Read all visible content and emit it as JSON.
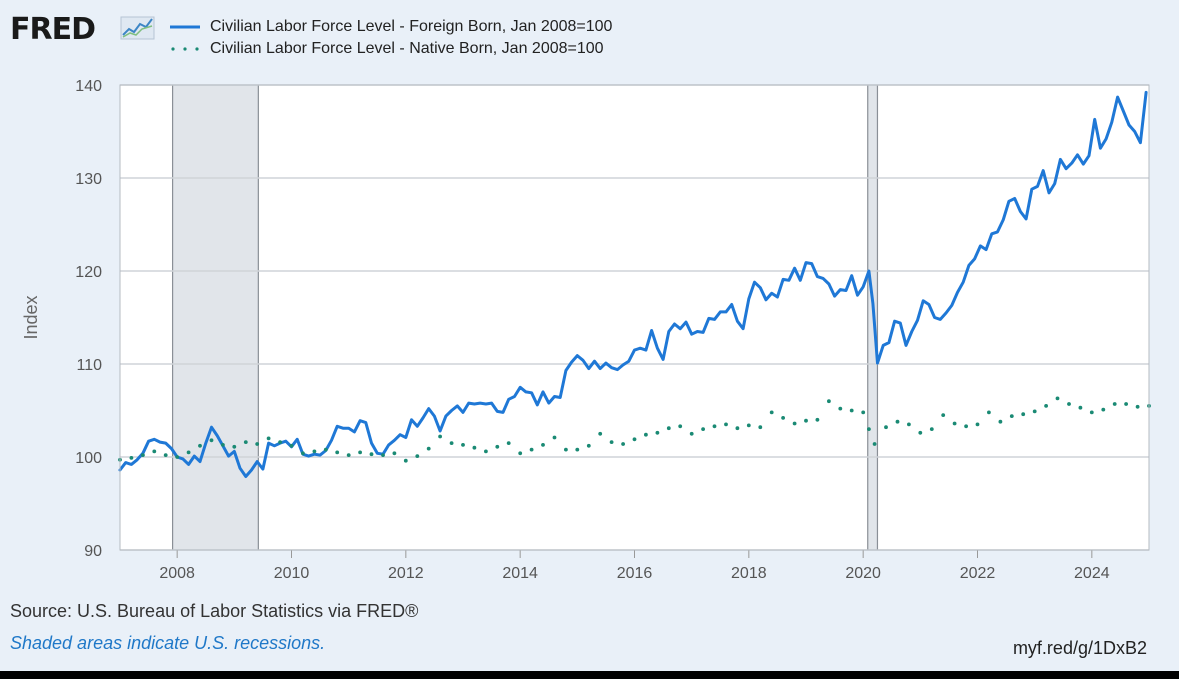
{
  "header": {
    "logo_text": "FRED",
    "legend": [
      {
        "label": "Civilian Labor Force Level - Foreign Born, Jan 2008=100",
        "color": "#1f78d6",
        "style": "solid"
      },
      {
        "label": "Civilian Labor Force Level - Native Born, Jan 2008=100",
        "color": "#1a8a74",
        "style": "dotted"
      }
    ]
  },
  "footer": {
    "source": "Source: U.S. Bureau of Labor Statistics via FRED®",
    "recession_note": "Shaded areas indicate U.S. recessions.",
    "link": "myf.red/g/1DxB2"
  },
  "chart_data": {
    "type": "line",
    "title": "",
    "xlabel": "",
    "ylabel": "Index",
    "xlim": [
      2007.0,
      2025.0
    ],
    "ylim": [
      90,
      140
    ],
    "y_ticks": [
      90,
      100,
      110,
      120,
      130,
      140
    ],
    "x_ticks": [
      2008,
      2010,
      2012,
      2014,
      2016,
      2018,
      2020,
      2022,
      2024
    ],
    "grid": true,
    "recessions": [
      [
        2007.92,
        2009.42
      ],
      [
        2020.08,
        2020.25
      ]
    ],
    "series": [
      {
        "name": "Civilian Labor Force Level - Foreign Born, Jan 2008=100",
        "color": "#1f78d6",
        "style": "solid",
        "points": [
          [
            2007.0,
            98.6
          ],
          [
            2007.1,
            99.4
          ],
          [
            2007.2,
            99.2
          ],
          [
            2007.3,
            99.7
          ],
          [
            2007.4,
            100.4
          ],
          [
            2007.5,
            101.7
          ],
          [
            2007.6,
            101.9
          ],
          [
            2007.7,
            101.6
          ],
          [
            2007.8,
            101.5
          ],
          [
            2007.9,
            100.9
          ],
          [
            2008.0,
            100.0
          ],
          [
            2008.1,
            99.8
          ],
          [
            2008.2,
            99.2
          ],
          [
            2008.3,
            100.1
          ],
          [
            2008.4,
            99.5
          ],
          [
            2008.5,
            101.5
          ],
          [
            2008.6,
            103.2
          ],
          [
            2008.7,
            102.3
          ],
          [
            2008.8,
            101.2
          ],
          [
            2008.9,
            100.1
          ],
          [
            2009.0,
            100.6
          ],
          [
            2009.1,
            98.8
          ],
          [
            2009.2,
            97.9
          ],
          [
            2009.3,
            98.6
          ],
          [
            2009.4,
            99.5
          ],
          [
            2009.5,
            98.7
          ],
          [
            2009.6,
            101.5
          ],
          [
            2009.7,
            101.2
          ],
          [
            2009.8,
            101.5
          ],
          [
            2009.9,
            101.7
          ],
          [
            2010.0,
            101.1
          ],
          [
            2010.1,
            101.9
          ],
          [
            2010.2,
            100.3
          ],
          [
            2010.3,
            100.1
          ],
          [
            2010.4,
            100.3
          ],
          [
            2010.5,
            100.2
          ],
          [
            2010.6,
            100.7
          ],
          [
            2010.7,
            101.8
          ],
          [
            2010.8,
            103.3
          ],
          [
            2010.9,
            103.1
          ],
          [
            2011.0,
            103.1
          ],
          [
            2011.1,
            102.7
          ],
          [
            2011.2,
            103.9
          ],
          [
            2011.3,
            103.7
          ],
          [
            2011.4,
            101.5
          ],
          [
            2011.5,
            100.4
          ],
          [
            2011.6,
            100.3
          ],
          [
            2011.7,
            101.3
          ],
          [
            2011.8,
            101.8
          ],
          [
            2011.9,
            102.4
          ],
          [
            2012.0,
            102.1
          ],
          [
            2012.1,
            104.0
          ],
          [
            2012.2,
            103.3
          ],
          [
            2012.3,
            104.2
          ],
          [
            2012.4,
            105.2
          ],
          [
            2012.5,
            104.4
          ],
          [
            2012.6,
            102.8
          ],
          [
            2012.7,
            104.4
          ],
          [
            2012.8,
            105.0
          ],
          [
            2012.9,
            105.5
          ],
          [
            2013.0,
            104.8
          ],
          [
            2013.1,
            105.8
          ],
          [
            2013.2,
            105.7
          ],
          [
            2013.3,
            105.8
          ],
          [
            2013.4,
            105.7
          ],
          [
            2013.5,
            105.8
          ],
          [
            2013.6,
            104.9
          ],
          [
            2013.7,
            104.8
          ],
          [
            2013.8,
            106.2
          ],
          [
            2013.9,
            106.5
          ],
          [
            2014.0,
            107.5
          ],
          [
            2014.1,
            107.0
          ],
          [
            2014.2,
            106.9
          ],
          [
            2014.3,
            105.6
          ],
          [
            2014.4,
            107.0
          ],
          [
            2014.5,
            105.8
          ],
          [
            2014.6,
            106.5
          ],
          [
            2014.7,
            106.4
          ],
          [
            2014.8,
            109.3
          ],
          [
            2014.9,
            110.2
          ],
          [
            2015.0,
            110.9
          ],
          [
            2015.1,
            110.4
          ],
          [
            2015.2,
            109.5
          ],
          [
            2015.3,
            110.3
          ],
          [
            2015.4,
            109.5
          ],
          [
            2015.5,
            110.1
          ],
          [
            2015.6,
            109.6
          ],
          [
            2015.7,
            109.4
          ],
          [
            2015.8,
            109.9
          ],
          [
            2015.9,
            110.3
          ],
          [
            2016.0,
            111.5
          ],
          [
            2016.1,
            111.7
          ],
          [
            2016.2,
            111.5
          ],
          [
            2016.3,
            113.6
          ],
          [
            2016.4,
            111.7
          ],
          [
            2016.5,
            110.5
          ],
          [
            2016.6,
            113.5
          ],
          [
            2016.7,
            114.3
          ],
          [
            2016.8,
            113.8
          ],
          [
            2016.9,
            114.5
          ],
          [
            2017.0,
            113.2
          ],
          [
            2017.1,
            113.5
          ],
          [
            2017.2,
            113.4
          ],
          [
            2017.3,
            114.9
          ],
          [
            2017.4,
            114.8
          ],
          [
            2017.5,
            115.6
          ],
          [
            2017.6,
            115.6
          ],
          [
            2017.7,
            116.4
          ],
          [
            2017.8,
            114.6
          ],
          [
            2017.9,
            113.8
          ],
          [
            2018.0,
            117.0
          ],
          [
            2018.1,
            118.8
          ],
          [
            2018.2,
            118.2
          ],
          [
            2018.3,
            116.9
          ],
          [
            2018.4,
            117.6
          ],
          [
            2018.5,
            117.2
          ],
          [
            2018.6,
            119.1
          ],
          [
            2018.7,
            119.0
          ],
          [
            2018.8,
            120.3
          ],
          [
            2018.9,
            119.0
          ],
          [
            2019.0,
            120.9
          ],
          [
            2019.1,
            120.8
          ],
          [
            2019.2,
            119.4
          ],
          [
            2019.3,
            119.2
          ],
          [
            2019.4,
            118.6
          ],
          [
            2019.5,
            117.3
          ],
          [
            2019.6,
            118.0
          ],
          [
            2019.7,
            117.9
          ],
          [
            2019.8,
            119.5
          ],
          [
            2019.9,
            117.4
          ],
          [
            2020.0,
            118.3
          ],
          [
            2020.1,
            120.0
          ],
          [
            2020.17,
            116.5
          ],
          [
            2020.25,
            110.1
          ],
          [
            2020.35,
            112.0
          ],
          [
            2020.45,
            112.3
          ],
          [
            2020.55,
            114.6
          ],
          [
            2020.65,
            114.4
          ],
          [
            2020.75,
            112.0
          ],
          [
            2020.85,
            113.5
          ],
          [
            2020.95,
            114.7
          ],
          [
            2021.05,
            116.8
          ],
          [
            2021.15,
            116.4
          ],
          [
            2021.25,
            115.0
          ],
          [
            2021.35,
            114.8
          ],
          [
            2021.45,
            115.5
          ],
          [
            2021.55,
            116.3
          ],
          [
            2021.65,
            117.7
          ],
          [
            2021.75,
            118.8
          ],
          [
            2021.85,
            120.6
          ],
          [
            2021.95,
            121.3
          ],
          [
            2022.05,
            122.7
          ],
          [
            2022.15,
            122.3
          ],
          [
            2022.25,
            124.0
          ],
          [
            2022.35,
            124.2
          ],
          [
            2022.45,
            125.5
          ],
          [
            2022.55,
            127.5
          ],
          [
            2022.65,
            127.8
          ],
          [
            2022.75,
            126.4
          ],
          [
            2022.85,
            125.6
          ],
          [
            2022.95,
            128.8
          ],
          [
            2023.05,
            129.1
          ],
          [
            2023.15,
            130.8
          ],
          [
            2023.25,
            128.4
          ],
          [
            2023.35,
            129.4
          ],
          [
            2023.45,
            132.0
          ],
          [
            2023.55,
            131.0
          ],
          [
            2023.65,
            131.6
          ],
          [
            2023.75,
            132.5
          ],
          [
            2023.85,
            131.5
          ],
          [
            2023.95,
            132.4
          ],
          [
            2024.05,
            136.3
          ],
          [
            2024.15,
            133.2
          ],
          [
            2024.25,
            134.2
          ],
          [
            2024.35,
            136.0
          ],
          [
            2024.45,
            138.7
          ],
          [
            2024.55,
            137.2
          ],
          [
            2024.65,
            135.7
          ],
          [
            2024.75,
            135.0
          ],
          [
            2024.85,
            133.8
          ],
          [
            2024.95,
            139.2
          ]
        ]
      },
      {
        "name": "Civilian Labor Force Level - Native Born, Jan 2008=100",
        "color": "#1a8a74",
        "style": "dotted",
        "points": [
          [
            2007.0,
            99.7
          ],
          [
            2007.2,
            99.9
          ],
          [
            2007.4,
            100.2
          ],
          [
            2007.6,
            100.6
          ],
          [
            2007.8,
            100.2
          ],
          [
            2008.0,
            100.0
          ],
          [
            2008.2,
            100.5
          ],
          [
            2008.4,
            101.2
          ],
          [
            2008.6,
            101.8
          ],
          [
            2008.8,
            101.3
          ],
          [
            2009.0,
            101.1
          ],
          [
            2009.2,
            101.6
          ],
          [
            2009.4,
            101.4
          ],
          [
            2009.6,
            102.0
          ],
          [
            2009.8,
            101.6
          ],
          [
            2010.0,
            101.2
          ],
          [
            2010.2,
            100.4
          ],
          [
            2010.4,
            100.6
          ],
          [
            2010.6,
            100.8
          ],
          [
            2010.8,
            100.5
          ],
          [
            2011.0,
            100.2
          ],
          [
            2011.2,
            100.5
          ],
          [
            2011.4,
            100.3
          ],
          [
            2011.6,
            100.2
          ],
          [
            2011.8,
            100.4
          ],
          [
            2012.0,
            99.6
          ],
          [
            2012.2,
            100.1
          ],
          [
            2012.4,
            100.9
          ],
          [
            2012.6,
            102.2
          ],
          [
            2012.8,
            101.5
          ],
          [
            2013.0,
            101.3
          ],
          [
            2013.2,
            101.0
          ],
          [
            2013.4,
            100.6
          ],
          [
            2013.6,
            101.1
          ],
          [
            2013.8,
            101.5
          ],
          [
            2014.0,
            100.4
          ],
          [
            2014.2,
            100.8
          ],
          [
            2014.4,
            101.3
          ],
          [
            2014.6,
            102.1
          ],
          [
            2014.8,
            100.8
          ],
          [
            2015.0,
            100.8
          ],
          [
            2015.2,
            101.2
          ],
          [
            2015.4,
            102.5
          ],
          [
            2015.6,
            101.6
          ],
          [
            2015.8,
            101.4
          ],
          [
            2016.0,
            101.9
          ],
          [
            2016.2,
            102.4
          ],
          [
            2016.4,
            102.6
          ],
          [
            2016.6,
            103.1
          ],
          [
            2016.8,
            103.3
          ],
          [
            2017.0,
            102.5
          ],
          [
            2017.2,
            103.0
          ],
          [
            2017.4,
            103.3
          ],
          [
            2017.6,
            103.5
          ],
          [
            2017.8,
            103.1
          ],
          [
            2018.0,
            103.4
          ],
          [
            2018.2,
            103.2
          ],
          [
            2018.4,
            104.8
          ],
          [
            2018.6,
            104.2
          ],
          [
            2018.8,
            103.6
          ],
          [
            2019.0,
            103.9
          ],
          [
            2019.2,
            104.0
          ],
          [
            2019.4,
            106.0
          ],
          [
            2019.6,
            105.2
          ],
          [
            2019.8,
            105.0
          ],
          [
            2020.0,
            104.8
          ],
          [
            2020.1,
            103.0
          ],
          [
            2020.2,
            101.4
          ],
          [
            2020.4,
            103.2
          ],
          [
            2020.6,
            103.8
          ],
          [
            2020.8,
            103.5
          ],
          [
            2021.0,
            102.6
          ],
          [
            2021.2,
            103.0
          ],
          [
            2021.4,
            104.5
          ],
          [
            2021.6,
            103.6
          ],
          [
            2021.8,
            103.3
          ],
          [
            2022.0,
            103.5
          ],
          [
            2022.2,
            104.8
          ],
          [
            2022.4,
            103.8
          ],
          [
            2022.6,
            104.4
          ],
          [
            2022.8,
            104.6
          ],
          [
            2023.0,
            104.9
          ],
          [
            2023.2,
            105.5
          ],
          [
            2023.4,
            106.3
          ],
          [
            2023.6,
            105.7
          ],
          [
            2023.8,
            105.3
          ],
          [
            2024.0,
            104.8
          ],
          [
            2024.2,
            105.1
          ],
          [
            2024.4,
            105.7
          ],
          [
            2024.6,
            105.7
          ],
          [
            2024.8,
            105.4
          ],
          [
            2025.0,
            105.5
          ]
        ]
      }
    ]
  }
}
